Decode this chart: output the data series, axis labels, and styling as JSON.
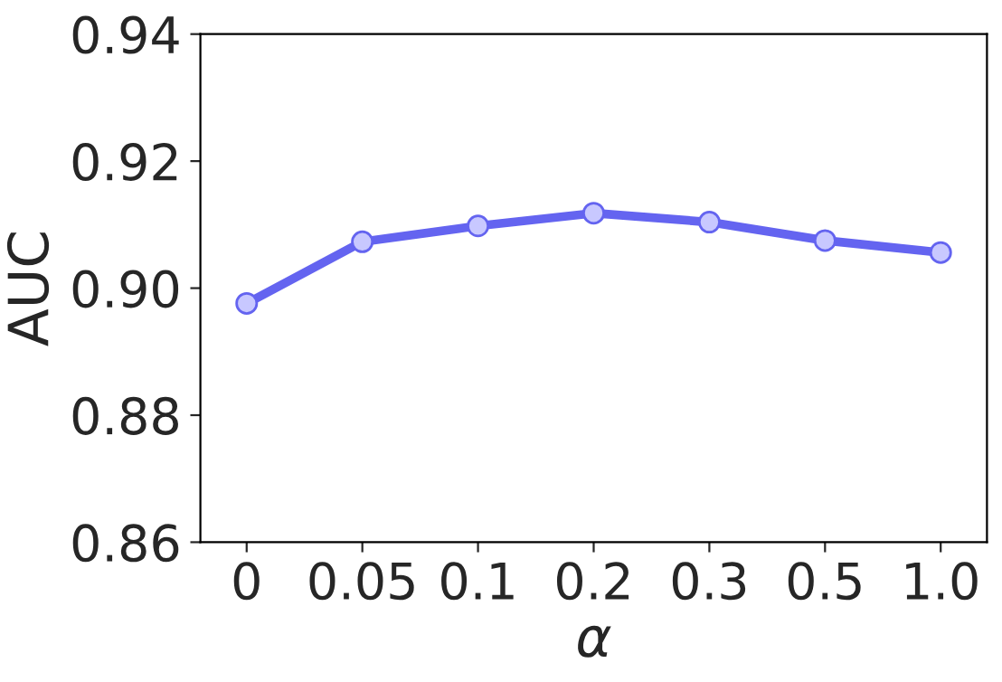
{
  "chart_data": {
    "type": "line",
    "xlabel": "α",
    "ylabel": "AUC",
    "categories": [
      "0",
      "0.05",
      "0.1",
      "0.2",
      "0.3",
      "0.5",
      "1.0"
    ],
    "series": [
      {
        "color": "#6464f0",
        "values": [
          0.8976,
          0.9073,
          0.9098,
          0.9118,
          0.9104,
          0.9075,
          0.9056
        ]
      }
    ],
    "ylim": [
      0.86,
      0.94
    ],
    "yticks": [
      {
        "value": 0.86,
        "label": "0.86"
      },
      {
        "value": 0.88,
        "label": "0.88"
      },
      {
        "value": 0.9,
        "label": "0.90"
      },
      {
        "value": 0.92,
        "label": "0.92"
      },
      {
        "value": 0.94,
        "label": "0.94"
      }
    ],
    "marker": "circle",
    "line_style": "solid"
  }
}
